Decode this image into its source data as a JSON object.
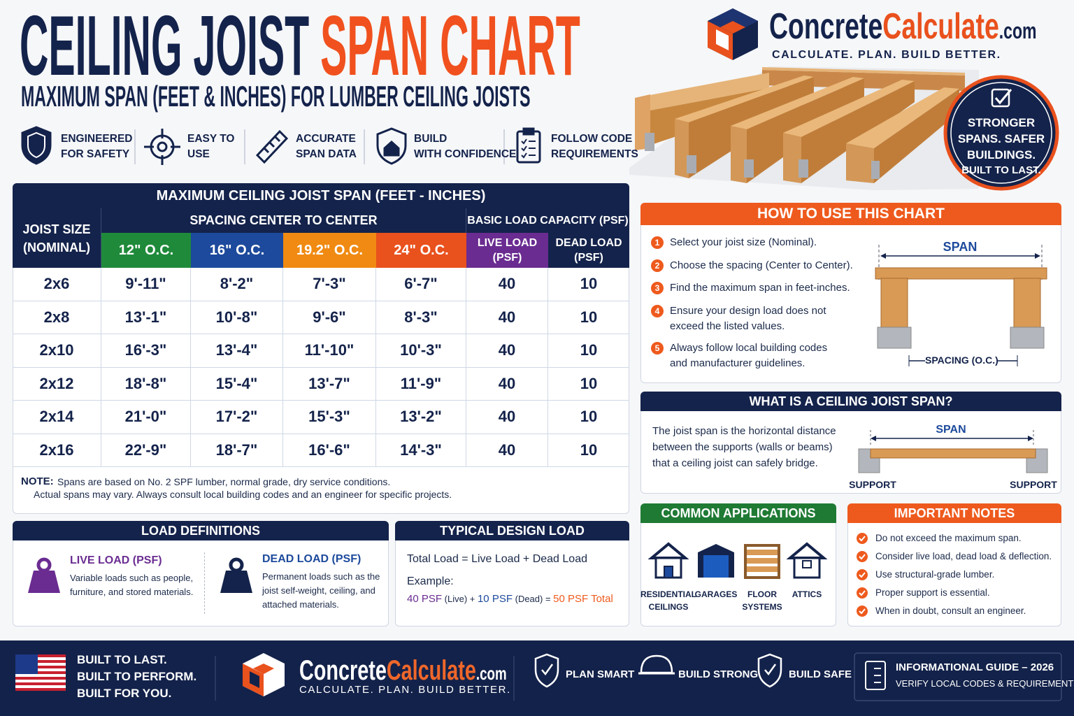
{
  "header": {
    "title": [
      "CEILING JOIST",
      "SPAN CHART"
    ],
    "subtitle": "MAXIMUM SPAN (FEET & INCHES) FOR LUMBER CEILING JOISTS"
  },
  "brand": {
    "name": [
      "Concrete",
      "Calculate",
      ".com"
    ],
    "tagline": "CALCULATE. PLAN. BUILD BETTER."
  },
  "features": [
    [
      "ENGINEERED",
      "FOR SAFETY"
    ],
    [
      "EASY TO",
      "USE"
    ],
    [
      "ACCURATE",
      "SPAN DATA"
    ],
    [
      "BUILD",
      "WITH CONFIDENCE"
    ],
    [
      "FOLLOW CODE",
      "REQUIREMENTS"
    ]
  ],
  "badge": [
    "STRONGER",
    "SPANS. SAFER",
    "BUILDINGS.",
    "BUILT TO LAST."
  ],
  "table": {
    "title": "MAXIMUM CEILING JOIST SPAN (FEET - INCHES)",
    "joist_header": [
      "JOIST SIZE",
      "(NOMINAL)"
    ],
    "spacing_header": "SPACING CENTER TO CENTER",
    "load_header": "BASIC LOAD CAPACITY (PSF)",
    "spacings": [
      "12\" O.C.",
      "16\" O.C.",
      "19.2\" O.C.",
      "24\" O.C."
    ],
    "live_header": [
      "LIVE LOAD",
      "(PSF)"
    ],
    "dead_header": [
      "DEAD LOAD",
      "(PSF)"
    ],
    "rows": [
      [
        "2x6",
        "9'-11\"",
        "8'-2\"",
        "7'-3\"",
        "6'-7\"",
        40,
        10
      ],
      [
        "2x8",
        "13'-1\"",
        "10'-8\"",
        "9'-6\"",
        "8'-3\"",
        40,
        10
      ],
      [
        "2x10",
        "16'-3\"",
        "13'-4\"",
        "11'-10\"",
        "10'-3\"",
        40,
        10
      ],
      [
        "2x12",
        "18'-8\"",
        "15'-4\"",
        "13'-7\"",
        "11'-9\"",
        40,
        10
      ],
      [
        "2x14",
        "21'-0\"",
        "17'-2\"",
        "15'-3\"",
        "13'-2\"",
        40,
        10
      ],
      [
        "2x16",
        "22'-9\"",
        "18'-7\"",
        "16'-6\"",
        "14'-3\"",
        40,
        10
      ]
    ]
  },
  "note": {
    "label": "NOTE:",
    "lines": [
      "Spans are based on No. 2 SPF lumber, normal grade, dry service conditions.",
      "Actual spans may vary. Always consult local building codes and an engineer for specific projects."
    ]
  },
  "how_to": {
    "title": "HOW TO USE THIS CHART",
    "steps": [
      {
        "number": "1",
        "lines": [
          "Select your joist size (Nominal)."
        ]
      },
      {
        "number": "2",
        "lines": [
          "Choose the spacing (Center to Center)."
        ]
      },
      {
        "number": "3",
        "lines": [
          "Find the maximum span in feet-inches."
        ]
      },
      {
        "number": "4",
        "lines": [
          "Ensure your design load does not",
          "exceed the listed values."
        ]
      },
      {
        "number": "5",
        "lines": [
          "Always follow local building codes",
          "and manufacturer guidelines."
        ]
      }
    ],
    "span_label": "SPAN",
    "spacing_label": "SPACING (O.C.)"
  },
  "what_is": {
    "title": "WHAT IS A CEILING JOIST SPAN?",
    "lines": [
      "The joist span is the horizontal distance",
      "between the supports (walls or beams)",
      "that a ceiling joist can safely bridge."
    ],
    "span_label": "SPAN",
    "support_labels": [
      "SUPPORT",
      "SUPPORT"
    ]
  },
  "load_definitions": {
    "title": "LOAD DEFINITIONS",
    "items": [
      {
        "title": "LIVE LOAD (PSF)",
        "lines": [
          "Variable loads such as people,",
          "furniture, and stored materials."
        ]
      },
      {
        "title": "DEAD LOAD (PSF)",
        "lines": [
          "Permanent loads such as the",
          "joist self-weight, ceiling, and",
          "attached materials."
        ]
      }
    ]
  },
  "typical_load": {
    "title": "TYPICAL DESIGN LOAD",
    "formula": "Total Load = Live Load + Dead Load",
    "example_label": "Example:",
    "example": [
      "40 PSF",
      " (Live) + ",
      "10 PSF",
      " (Dead) = ",
      "50 PSF Total"
    ]
  },
  "applications": {
    "title": "COMMON APPLICATIONS",
    "items": [
      [
        "RESIDENTIAL",
        "CEILINGS"
      ],
      [
        "GARAGES"
      ],
      [
        "FLOOR",
        "SYSTEMS"
      ],
      [
        "ATTICS"
      ]
    ]
  },
  "important_notes": {
    "title": "IMPORTANT NOTES",
    "items": [
      "Do not exceed the maximum span.",
      "Consider live load, dead load & deflection.",
      "Use structural-grade lumber.",
      "Proper support is essential.",
      "When in doubt, consult an engineer."
    ]
  },
  "footer": {
    "slogan": [
      "BUILT TO LAST.",
      "BUILT TO PERFORM.",
      "BUILT FOR YOU."
    ],
    "features": [
      "PLAN SMART",
      "BUILD STRONG",
      "BUILD SAFE"
    ],
    "guide": [
      "INFORMATIONAL GUIDE – 2026",
      "VERIFY LOCAL CODES & REQUIREMENTS"
    ]
  }
}
